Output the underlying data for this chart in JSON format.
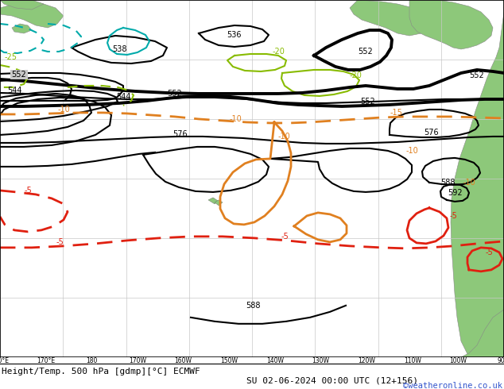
{
  "title": "Height/Temp. 500 hPa [gdmp][°C] ECMWF",
  "date_str": "SU 02-06-2024 00:00 UTC (12+156)",
  "credit": "©weatheronline.co.uk",
  "ocean_color": "#c8c8c8",
  "land_color": "#8dc87a",
  "grid_color": "#d0d0d0",
  "black_contour_color": "#000000",
  "orange_contour_color": "#e08020",
  "red_contour_color": "#e02010",
  "green_contour_color": "#88bb00",
  "cyan_contour_color": "#00aaaa",
  "bottom_bg": "#ffffff",
  "credit_color": "#3355cc"
}
